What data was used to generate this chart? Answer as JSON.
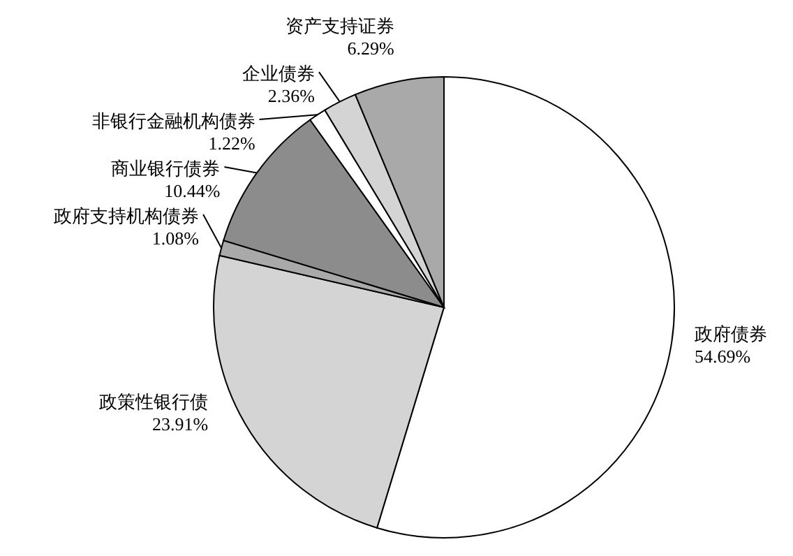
{
  "chart_data": {
    "type": "pie",
    "categories": [
      "政府债券",
      "政策性银行债",
      "政府支持机构债券",
      "商业银行债券",
      "非银行金融机构债券",
      "企业债券",
      "资产支持证券"
    ],
    "values": [
      54.69,
      23.91,
      1.08,
      10.44,
      1.22,
      2.36,
      6.29
    ],
    "value_labels": [
      "54.69%",
      "23.91%",
      "1.08%",
      "10.44%",
      "1.22%",
      "2.36%",
      "6.29%"
    ],
    "colors": [
      "#ffffff",
      "#d4d4d4",
      "#a9a9a9",
      "#8c8c8c",
      "#ffffff",
      "#d4d4d4",
      "#a9a9a9"
    ]
  }
}
